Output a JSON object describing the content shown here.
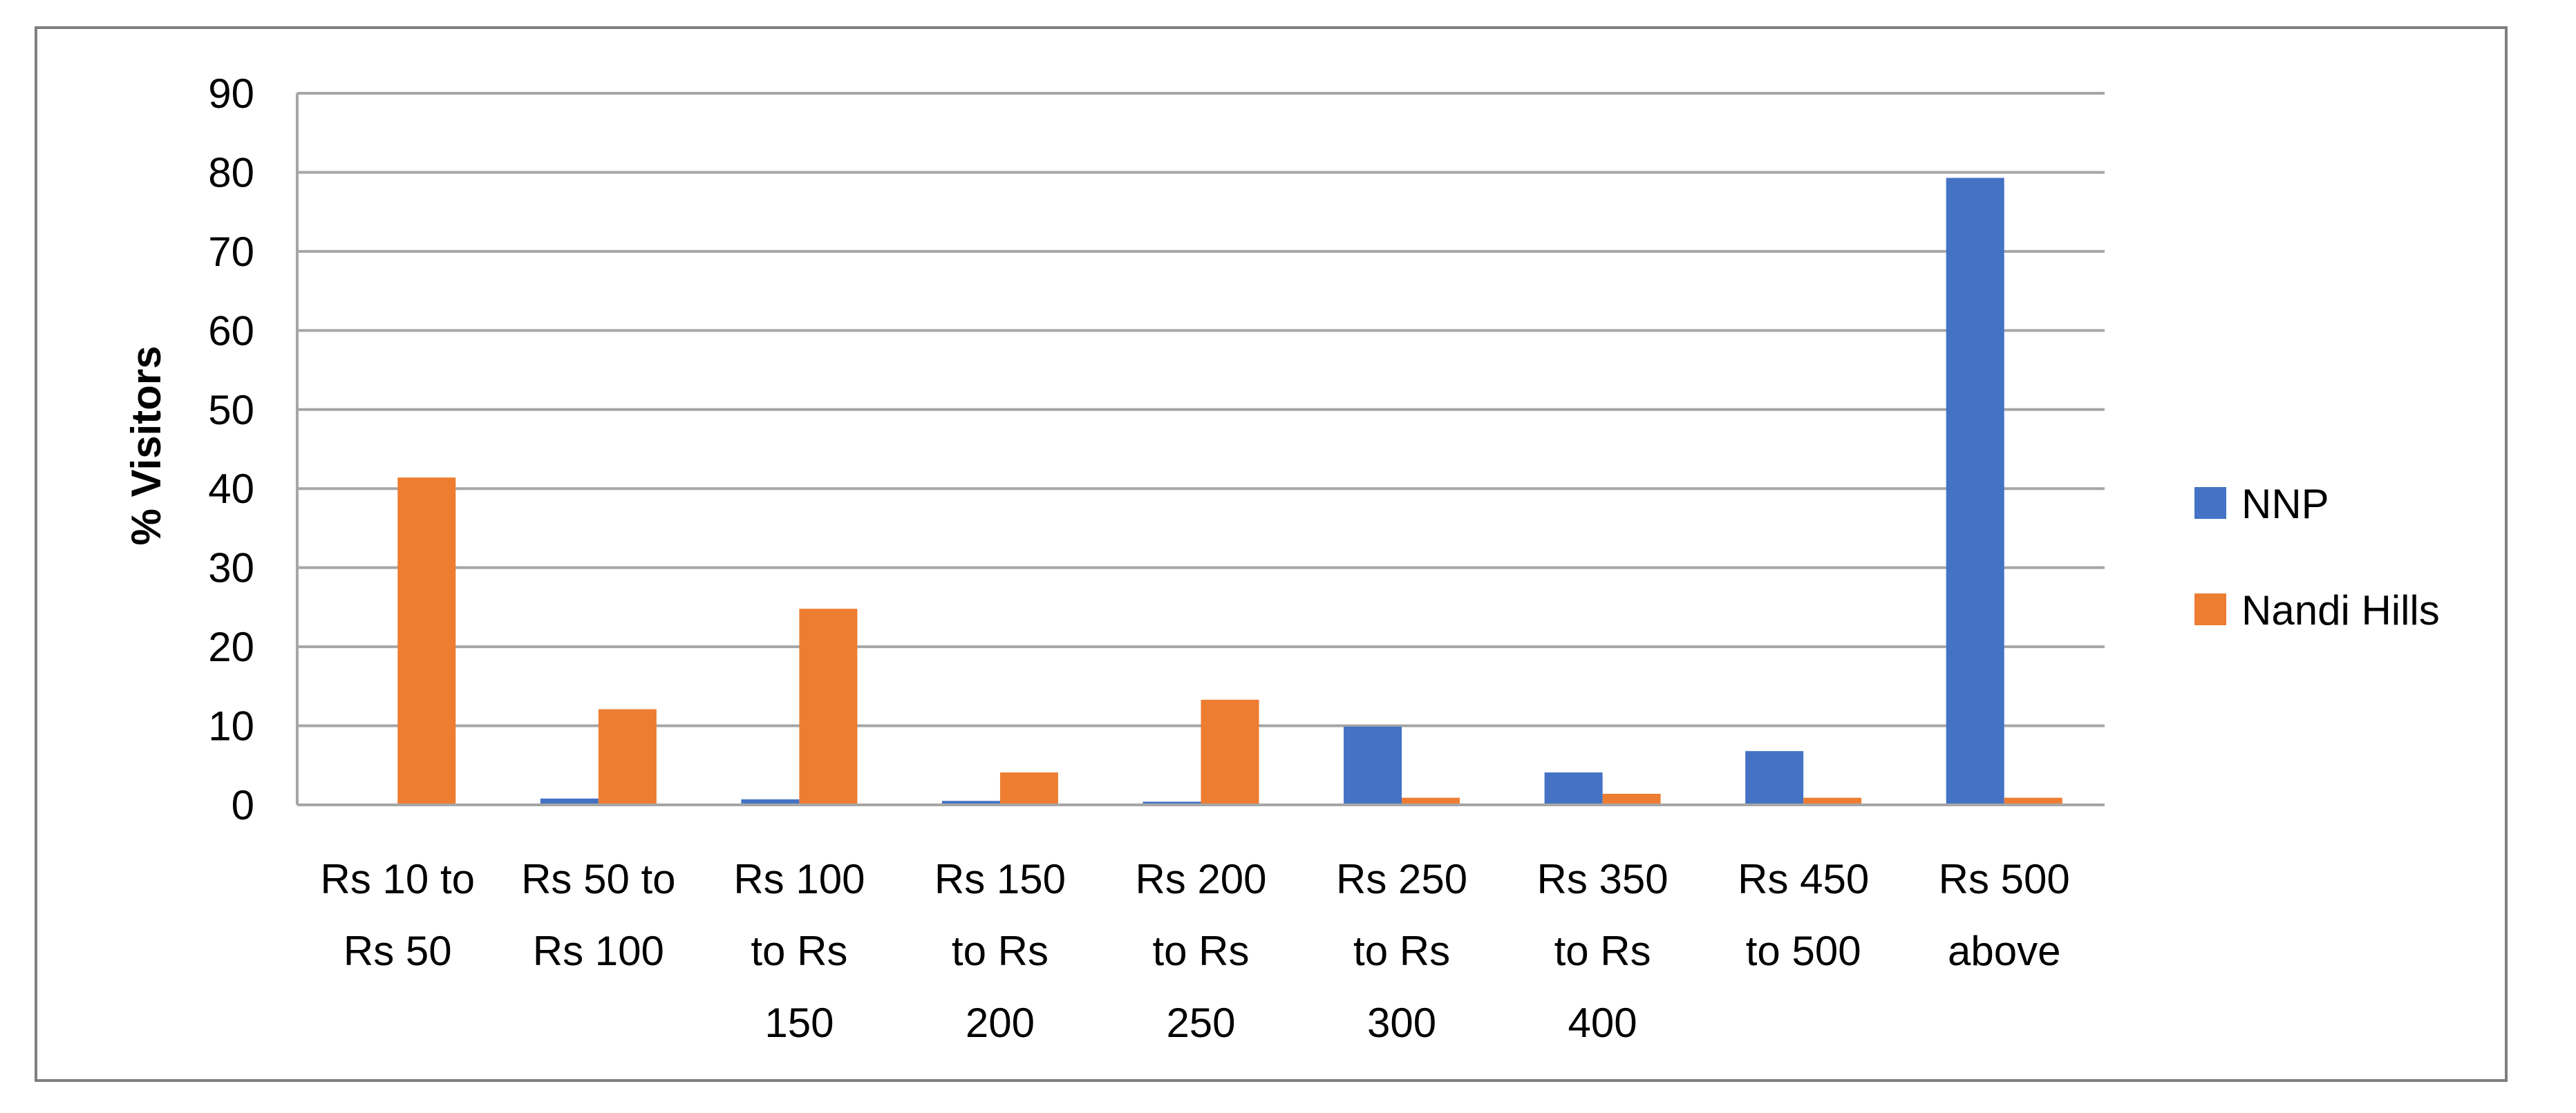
{
  "chart_data": {
    "type": "bar",
    "title": "",
    "xlabel": "",
    "ylabel": "% Visitors",
    "ylim": [
      0,
      90
    ],
    "y_ticks": [
      0,
      10,
      20,
      30,
      40,
      50,
      60,
      70,
      80,
      90
    ],
    "grid": true,
    "legend_position": "right",
    "categories": [
      [
        "Rs 10 to",
        "Rs 50"
      ],
      [
        "Rs 50 to",
        "Rs 100"
      ],
      [
        "Rs 100",
        "to Rs",
        "150"
      ],
      [
        "Rs 150",
        "to Rs",
        "200"
      ],
      [
        "Rs 200",
        "to Rs",
        "250"
      ],
      [
        "Rs 250",
        "to Rs",
        "300"
      ],
      [
        "Rs 350",
        "to Rs",
        "400"
      ],
      [
        "Rs 450",
        "to 500"
      ],
      [
        "Rs 500",
        "above"
      ]
    ],
    "series": [
      {
        "name": "NNP",
        "color": "#4472c4",
        "values": [
          0,
          0.8,
          0.7,
          0.5,
          0.4,
          9.9,
          4.1,
          6.8,
          79.3
        ]
      },
      {
        "name": "Nandi Hills",
        "color": "#ed7d31",
        "values": [
          41.4,
          12.1,
          24.8,
          4.1,
          13.3,
          0.9,
          1.4,
          0.9,
          0.9
        ]
      }
    ]
  }
}
